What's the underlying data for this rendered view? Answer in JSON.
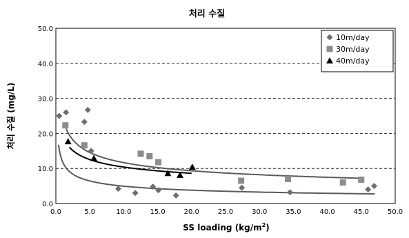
{
  "chart_data": {
    "type": "scatter",
    "title": "처리 수질",
    "xlabel": "SS loading (kg/m²)",
    "xlabel_parts": {
      "main": "SS loading (kg/m",
      "sup": "2",
      "end": ")"
    },
    "ylabel": "처리 수질 (mg/L)",
    "xlim": [
      0,
      50
    ],
    "ylim": [
      0,
      50
    ],
    "x_ticks": [
      0,
      5,
      10,
      15,
      20,
      25,
      30,
      35,
      40,
      45,
      50
    ],
    "y_ticks": [
      0,
      10,
      20,
      30,
      40,
      50
    ],
    "x_tick_labels": [
      "0.0",
      "5.0",
      "10.0",
      "15.0",
      "20.0",
      "25.0",
      "30.0",
      "35.0",
      "40.0",
      "45.0",
      "50.0"
    ],
    "y_tick_labels": [
      "0.0",
      "10.0",
      "20.0",
      "30.0",
      "40.0",
      "50.0"
    ],
    "grid": "horizontal dashed",
    "legend_position": "top-right",
    "series": [
      {
        "name": "10m/day",
        "marker": "diamond",
        "color": "#6e6e6e",
        "points": [
          [
            0.5,
            25
          ],
          [
            1.5,
            26
          ],
          [
            4.2,
            23.3
          ],
          [
            4.7,
            26.7
          ],
          [
            5.2,
            15
          ],
          [
            9.2,
            4.2
          ],
          [
            11.7,
            3
          ],
          [
            14.3,
            4.8
          ],
          [
            15.1,
            3.8
          ],
          [
            17.7,
            2.3
          ],
          [
            27.4,
            4.5
          ],
          [
            34.5,
            3.2
          ],
          [
            46,
            4
          ],
          [
            46.9,
            5
          ]
        ]
      },
      {
        "name": "30m/day",
        "marker": "square",
        "color": "#8c8c8c",
        "points": [
          [
            1.4,
            22.3
          ],
          [
            4.2,
            16.6
          ],
          [
            12.5,
            14.2
          ],
          [
            13.8,
            13.5
          ],
          [
            15.1,
            11.8
          ],
          [
            27.3,
            6.5
          ],
          [
            34.2,
            7
          ],
          [
            42.3,
            6
          ],
          [
            45,
            6.8
          ]
        ]
      },
      {
        "name": "40m/day",
        "marker": "triangle",
        "color": "#000000",
        "points": [
          [
            1.8,
            17.7
          ],
          [
            5.6,
            12.9
          ],
          [
            16.5,
            8.6
          ],
          [
            18.3,
            8.1
          ],
          [
            20.1,
            10.4
          ]
        ]
      }
    ],
    "trendlines": [
      {
        "series": "10m/day",
        "color": "#5a5a5a",
        "a": 11.86,
        "b": -0.38,
        "x_range": [
          0.4,
          47
        ]
      },
      {
        "series": "30m/day",
        "color": "#5a5a5a",
        "a": 24.37,
        "b": -0.32,
        "x_range": [
          1.5,
          45
        ]
      },
      {
        "series": "40m/day",
        "color": "#000000",
        "a": 19.36,
        "b": -0.27,
        "x_range": [
          2,
          20
        ]
      }
    ]
  }
}
